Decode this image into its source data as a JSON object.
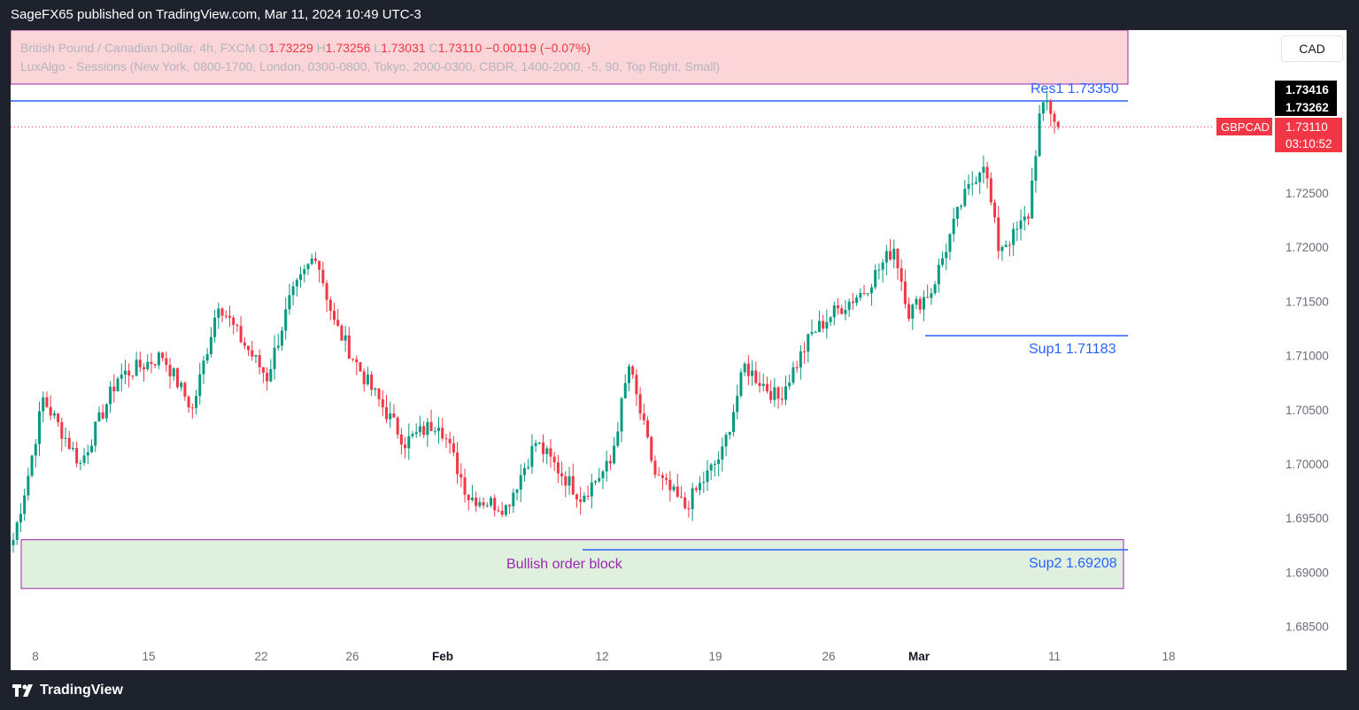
{
  "header": {
    "published_text": "SageFX65 published on TradingView.com, Mar 11, 2024 10:49 UTC-3"
  },
  "legend": {
    "line1_prefix": "British Pound / Canadian Dollar, 4h, FXCM",
    "o_label": "O",
    "o_value": "1.73229",
    "h_label": "H",
    "h_value": "1.73256",
    "l_label": "L",
    "l_value": "1.73031",
    "c_label": "C",
    "c_value": "1.73110",
    "change": "−0.00119 (−0.07%)",
    "line2": "LuxAlgo - Sessions (New York, 0800-1700, London, 0300-0800, Tokyo, 2000-0300, CBDR, 1400-2000, -5, 90, Top Right, Small)"
  },
  "currency_button": "CAD",
  "footer": {
    "brand": "TradingView"
  },
  "colors": {
    "up": "#089981",
    "down": "#f23645",
    "level_line": "#2962ff",
    "order_block_fill": "#dff0df",
    "order_block_border": "#9c27b0",
    "session_box_fill": "#fbd5d8",
    "session_box_border": "#9c27b0",
    "price_tag_bg": "#f23645"
  },
  "price_axis": {
    "ticks": [
      "1.72500",
      "1.72000",
      "1.71500",
      "1.71000",
      "1.70500",
      "1.70000",
      "1.69500",
      "1.69000",
      "1.68500"
    ],
    "tag_high": "1.73416",
    "tag_low": "1.73262",
    "tag_symbol": "GBPCAD",
    "tag_price": "1.73110",
    "tag_countdown": "03:10:52"
  },
  "time_axis": {
    "labels": [
      {
        "text": "8",
        "bold": false
      },
      {
        "text": "15",
        "bold": false
      },
      {
        "text": "22",
        "bold": false
      },
      {
        "text": "26",
        "bold": false
      },
      {
        "text": "Feb",
        "bold": true
      },
      {
        "text": "12",
        "bold": false
      },
      {
        "text": "19",
        "bold": false
      },
      {
        "text": "26",
        "bold": false
      },
      {
        "text": "Mar",
        "bold": true
      },
      {
        "text": "11",
        "bold": false
      },
      {
        "text": "18",
        "bold": false
      }
    ]
  },
  "annotations": {
    "res1": "Res1 1.73350",
    "sup1": "Sup1 1.71183",
    "sup2": "Sup2 1.69208",
    "order_block": "Bullish order block"
  },
  "chart_data": {
    "type": "candlestick",
    "symbol": "GBPCAD",
    "timeframe": "4h",
    "ylim": [
      1.683,
      1.737
    ],
    "levels": {
      "res1": 1.7335,
      "sup1": 1.71183,
      "sup2": 1.69208,
      "current": 1.7311
    },
    "order_block": {
      "top": 1.693,
      "bottom": 1.6885
    },
    "anchors": [
      {
        "i": 0,
        "p": 1.693
      },
      {
        "i": 4,
        "p": 1.699
      },
      {
        "i": 8,
        "p": 1.706
      },
      {
        "i": 18,
        "p": 1.7
      },
      {
        "i": 28,
        "p": 1.708
      },
      {
        "i": 40,
        "p": 1.71
      },
      {
        "i": 48,
        "p": 1.705
      },
      {
        "i": 55,
        "p": 1.715
      },
      {
        "i": 60,
        "p": 1.712
      },
      {
        "i": 68,
        "p": 1.708
      },
      {
        "i": 74,
        "p": 1.715
      },
      {
        "i": 81,
        "p": 1.7195
      },
      {
        "i": 86,
        "p": 1.713
      },
      {
        "i": 94,
        "p": 1.708
      },
      {
        "i": 105,
        "p": 1.702
      },
      {
        "i": 114,
        "p": 1.704
      },
      {
        "i": 122,
        "p": 1.697
      },
      {
        "i": 132,
        "p": 1.696
      },
      {
        "i": 140,
        "p": 1.702
      },
      {
        "i": 152,
        "p": 1.697
      },
      {
        "i": 160,
        "p": 1.7
      },
      {
        "i": 165,
        "p": 1.709
      },
      {
        "i": 172,
        "p": 1.699
      },
      {
        "i": 180,
        "p": 1.696
      },
      {
        "i": 190,
        "p": 1.701
      },
      {
        "i": 196,
        "p": 1.709
      },
      {
        "i": 205,
        "p": 1.706
      },
      {
        "i": 214,
        "p": 1.712
      },
      {
        "i": 220,
        "p": 1.714
      },
      {
        "i": 228,
        "p": 1.716
      },
      {
        "i": 236,
        "p": 1.72
      },
      {
        "i": 240,
        "p": 1.714
      },
      {
        "i": 246,
        "p": 1.716
      },
      {
        "i": 254,
        "p": 1.724
      },
      {
        "i": 260,
        "p": 1.728
      },
      {
        "i": 264,
        "p": 1.72
      },
      {
        "i": 268,
        "p": 1.721
      },
      {
        "i": 272,
        "p": 1.723
      },
      {
        "i": 275,
        "p": 1.732
      },
      {
        "i": 277,
        "p": 1.7333
      },
      {
        "i": 280,
        "p": 1.7311
      }
    ],
    "bar_count": 281
  }
}
